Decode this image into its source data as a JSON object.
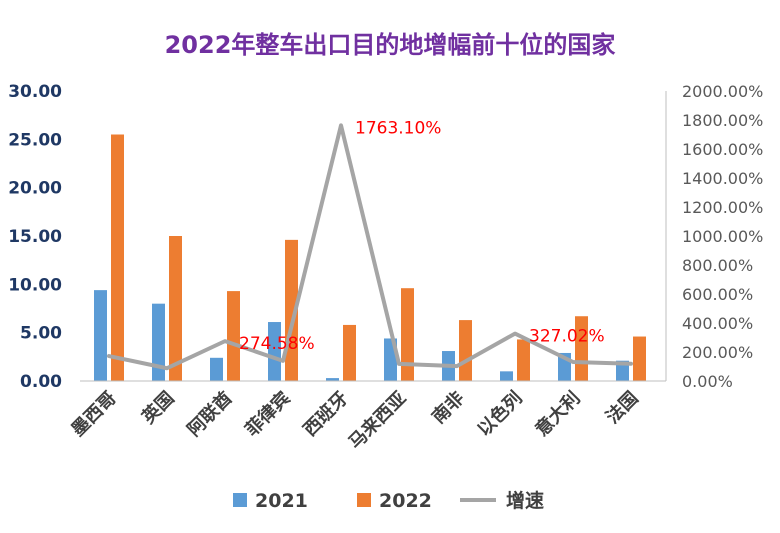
{
  "chart_data": {
    "type": "bar",
    "title": "2022年整车出口目的地增幅前十位的国家",
    "categories": [
      "墨西哥",
      "英国",
      "阿联酋",
      "菲律宾",
      "西班牙",
      "马来西亚",
      "南非",
      "以色列",
      "意大利",
      "法国"
    ],
    "series": [
      {
        "name": "2021",
        "type": "bar",
        "axis": "left",
        "color": "#5B9BD5",
        "values": [
          9.4,
          8.0,
          2.4,
          6.1,
          0.3,
          4.4,
          3.1,
          1.0,
          2.9,
          2.1
        ]
      },
      {
        "name": "2022",
        "type": "bar",
        "axis": "left",
        "color": "#ED7D31",
        "values": [
          25.5,
          15.0,
          9.3,
          14.6,
          5.8,
          9.6,
          6.3,
          4.3,
          6.7,
          4.6
        ]
      },
      {
        "name": "增速",
        "type": "line",
        "axis": "right",
        "color": "#A5A5A5",
        "values": [
          172,
          88,
          275,
          139,
          1763.1,
          118,
          103,
          327.02,
          131,
          119
        ]
      }
    ],
    "annotations": [
      {
        "category": "阿联酋",
        "text": "274.58%"
      },
      {
        "category": "西班牙",
        "text": "1763.10%"
      },
      {
        "category": "以色列",
        "text": "327.02%"
      }
    ],
    "y_left": {
      "min": 0,
      "max": 30,
      "step": 5,
      "tick_labels": [
        "0.00",
        "5.00",
        "10.00",
        "15.00",
        "20.00",
        "25.00",
        "30.00"
      ]
    },
    "y_right": {
      "min": 0,
      "max": 2000,
      "step": 200,
      "tick_labels": [
        "0.00%",
        "200.00%",
        "400.00%",
        "600.00%",
        "800.00%",
        "1000.00%",
        "1200.00%",
        "1400.00%",
        "1600.00%",
        "1800.00%",
        "2000.00%"
      ]
    },
    "grid": false,
    "legend_position": "bottom",
    "colors": {
      "title": "#7030A0",
      "annotation": "#FF0000",
      "axis_text_left": "#1F3864",
      "axis_text_right": "#595959",
      "category_text": "#404040"
    }
  }
}
